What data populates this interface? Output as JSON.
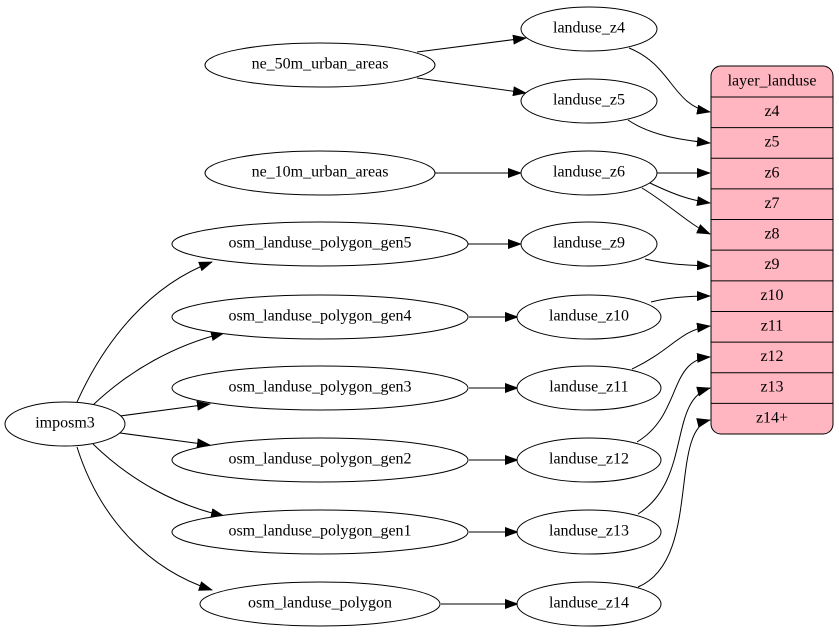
{
  "nodes": [
    {
      "label": "landuse_z4"
    },
    {
      "label": "ne_50m_urban_areas"
    },
    {
      "label": "landuse_z5"
    },
    {
      "label": "ne_10m_urban_areas"
    },
    {
      "label": "landuse_z6"
    },
    {
      "label": "osm_landuse_polygon_gen5"
    },
    {
      "label": "landuse_z9"
    },
    {
      "label": "osm_landuse_polygon_gen4"
    },
    {
      "label": "landuse_z10"
    },
    {
      "label": "osm_landuse_polygon_gen3"
    },
    {
      "label": "landuse_z11"
    },
    {
      "label": "imposm3"
    },
    {
      "label": "osm_landuse_polygon_gen2"
    },
    {
      "label": "landuse_z12"
    },
    {
      "label": "osm_landuse_polygon_gen1"
    },
    {
      "label": "landuse_z13"
    },
    {
      "label": "osm_landuse_polygon"
    },
    {
      "label": "landuse_z14"
    }
  ],
  "record": {
    "title": "layer_landuse",
    "fields": [
      "z4",
      "z5",
      "z6",
      "z7",
      "z8",
      "z9",
      "z10",
      "z11",
      "z12",
      "z13",
      "z14+"
    ]
  }
}
